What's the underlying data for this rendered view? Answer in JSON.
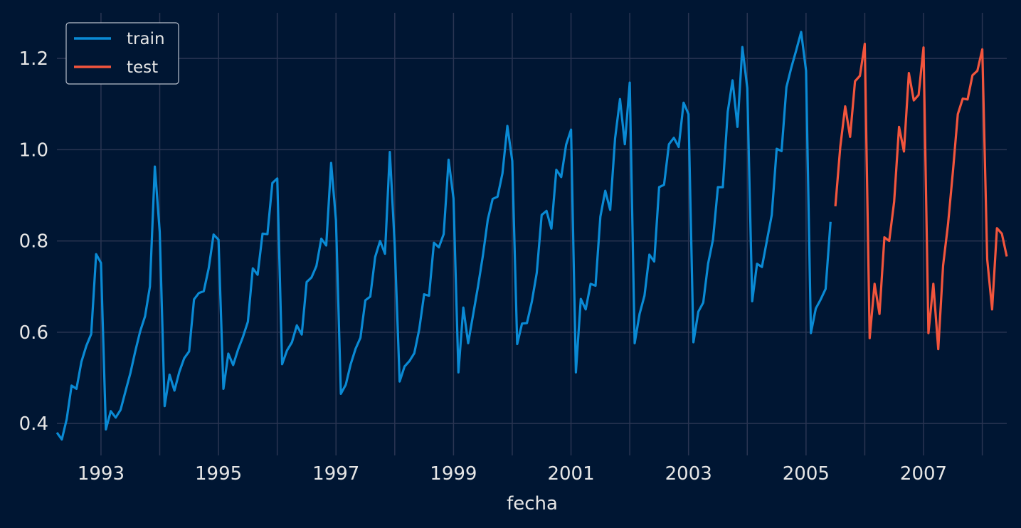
{
  "chart_data": {
    "type": "line",
    "title": "",
    "xlabel": "fecha",
    "ylabel": "",
    "x_axis": "date",
    "xlim": [
      "1992-04",
      "2008-06"
    ],
    "ylim": [
      0.33,
      1.3
    ],
    "x_ticks": [
      "1993",
      "1995",
      "1997",
      "1999",
      "2001",
      "2003",
      "2005",
      "2007"
    ],
    "y_ticks": [
      "0.4",
      "0.6",
      "0.8",
      "1.0",
      "1.2"
    ],
    "grid": true,
    "legend": {
      "placement": "top-left",
      "entries": [
        "train",
        "test"
      ]
    },
    "series": [
      {
        "name": "train",
        "color": "#0a8ad4",
        "start": "1992-04",
        "frequency": "monthly",
        "values": [
          0.38,
          0.365,
          0.41,
          0.483,
          0.476,
          0.535,
          0.57,
          0.596,
          0.771,
          0.752,
          0.387,
          0.427,
          0.413,
          0.43,
          0.47,
          0.51,
          0.558,
          0.602,
          0.635,
          0.7,
          0.963,
          0.82,
          0.438,
          0.507,
          0.472,
          0.513,
          0.543,
          0.558,
          0.672,
          0.686,
          0.69,
          0.74,
          0.814,
          0.803,
          0.476,
          0.553,
          0.528,
          0.562,
          0.59,
          0.623,
          0.74,
          0.726,
          0.816,
          0.815,
          0.927,
          0.937,
          0.53,
          0.56,
          0.578,
          0.615,
          0.595,
          0.71,
          0.72,
          0.745,
          0.805,
          0.79,
          0.971,
          0.845,
          0.465,
          0.485,
          0.53,
          0.564,
          0.588,
          0.67,
          0.678,
          0.765,
          0.8,
          0.772,
          0.995,
          0.79,
          0.492,
          0.525,
          0.537,
          0.554,
          0.606,
          0.683,
          0.68,
          0.796,
          0.786,
          0.815,
          0.978,
          0.893,
          0.512,
          0.654,
          0.576,
          0.638,
          0.7,
          0.768,
          0.847,
          0.892,
          0.897,
          0.948,
          1.052,
          0.975,
          0.574,
          0.619,
          0.62,
          0.667,
          0.73,
          0.857,
          0.866,
          0.827,
          0.956,
          0.94,
          1.011,
          1.044,
          0.512,
          0.673,
          0.65,
          0.706,
          0.702,
          0.853,
          0.91,
          0.868,
          1.025,
          1.111,
          1.012,
          1.147,
          0.576,
          0.64,
          0.68,
          0.77,
          0.755,
          0.918,
          0.923,
          1.012,
          1.026,
          1.006,
          1.103,
          1.078,
          0.578,
          0.645,
          0.665,
          0.75,
          0.803,
          0.918,
          0.918,
          1.083,
          1.152,
          1.05,
          1.225,
          1.135,
          0.668,
          0.75,
          0.743,
          0.8,
          0.857,
          1.002,
          0.997,
          1.137,
          1.18,
          1.218,
          1.258,
          1.173,
          0.598,
          0.652,
          0.672,
          0.695,
          0.842
        ]
      },
      {
        "name": "test",
        "color": "#f2553d",
        "start": "2005-07",
        "frequency": "monthly",
        "values": [
          0.876,
          1.006,
          1.095,
          1.028,
          1.15,
          1.162,
          1.232,
          0.587,
          0.706,
          0.64,
          0.808,
          0.8,
          0.886,
          1.05,
          0.996,
          1.168,
          1.108,
          1.12,
          1.224,
          0.598,
          0.706,
          0.563,
          0.746,
          0.836,
          0.952,
          1.078,
          1.112,
          1.11,
          1.163,
          1.173,
          1.22,
          0.76,
          0.65,
          0.828,
          0.816,
          0.766
        ]
      }
    ]
  }
}
